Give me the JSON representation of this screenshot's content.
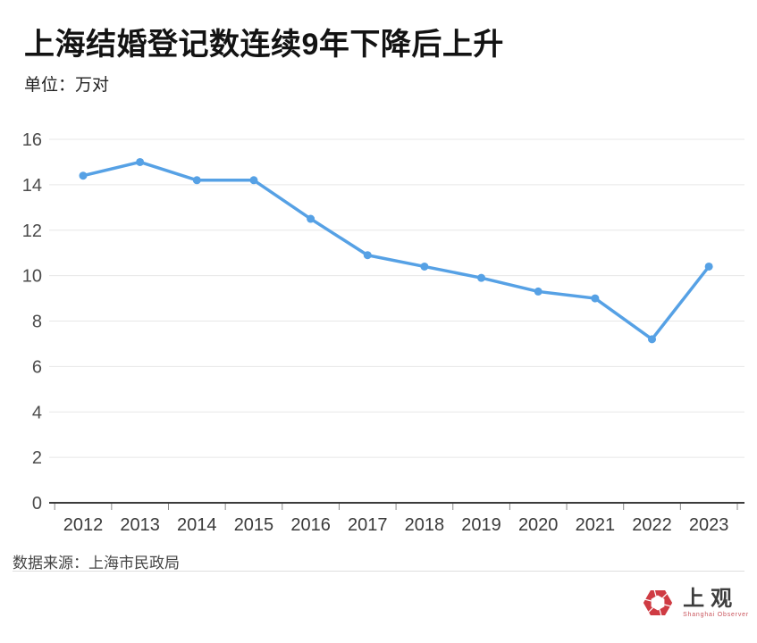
{
  "title": "上海结婚登记数连续9年下降后上升",
  "subtitle": "单位：万对",
  "source": "数据来源：上海市民政局",
  "logo": {
    "cn": "上观",
    "en": "Shanghai Observer"
  },
  "colors": {
    "line": "#56a1e5",
    "point": "#56a1e5",
    "grid": "#e7e7e7",
    "axis": "#3c3c3c",
    "tick": "#888888",
    "y_label": "#4c4c4c",
    "x_label": "#3a3a3a",
    "logo_red": "#cf3b43"
  },
  "chart_data": {
    "type": "line",
    "title": "上海结婚登记数连续9年下降后上升",
    "unit_label": "单位：万对",
    "categories": [
      "2012",
      "2013",
      "2014",
      "2015",
      "2016",
      "2017",
      "2018",
      "2019",
      "2020",
      "2021",
      "2022",
      "2023"
    ],
    "values": [
      14.4,
      15.0,
      14.2,
      14.2,
      12.5,
      10.9,
      10.4,
      9.9,
      9.3,
      9.0,
      7.2,
      10.4
    ],
    "ylim": [
      0,
      16
    ],
    "yticks": [
      0,
      2,
      4,
      6,
      8,
      10,
      12,
      14,
      16
    ],
    "xlabel": "",
    "ylabel": "万对",
    "grid": "horizontal",
    "legend": "none",
    "source": "数据来源：上海市民政局"
  }
}
